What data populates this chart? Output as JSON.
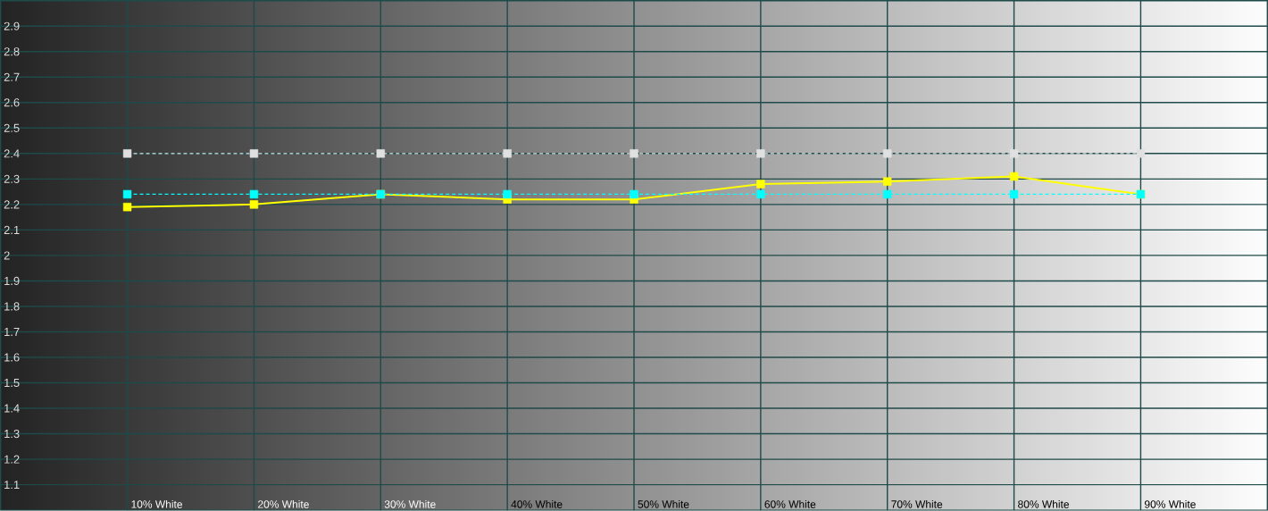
{
  "chart_data": {
    "type": "line",
    "categories": [
      "10% White",
      "20% White",
      "30% White",
      "40% White",
      "50% White",
      "60% White",
      "70% White",
      "80% White",
      "90% White"
    ],
    "series": [
      {
        "color": "#e0e0e0",
        "line_style": "dashed",
        "values": [
          2.4,
          2.4,
          2.4,
          2.4,
          2.4,
          2.4,
          2.4,
          2.4,
          2.4
        ]
      },
      {
        "color": "#ffff00",
        "line_style": "solid",
        "values": [
          2.19,
          2.2,
          2.24,
          2.22,
          2.22,
          2.28,
          2.29,
          2.31,
          2.24
        ]
      },
      {
        "color": "#00ffff",
        "line_style": "dashed",
        "values": [
          2.24,
          2.24,
          2.24,
          2.24,
          2.24,
          2.24,
          2.24,
          2.24,
          2.24
        ]
      }
    ],
    "ylim": [
      1,
      3
    ],
    "yticks": [
      1.1,
      1.2,
      1.3,
      1.4,
      1.5,
      1.6,
      1.7,
      1.8,
      1.9,
      2,
      2.1,
      2.2,
      2.3,
      2.4,
      2.5,
      2.6,
      2.7,
      2.8,
      2.9
    ],
    "grid": true,
    "marker": "square"
  }
}
